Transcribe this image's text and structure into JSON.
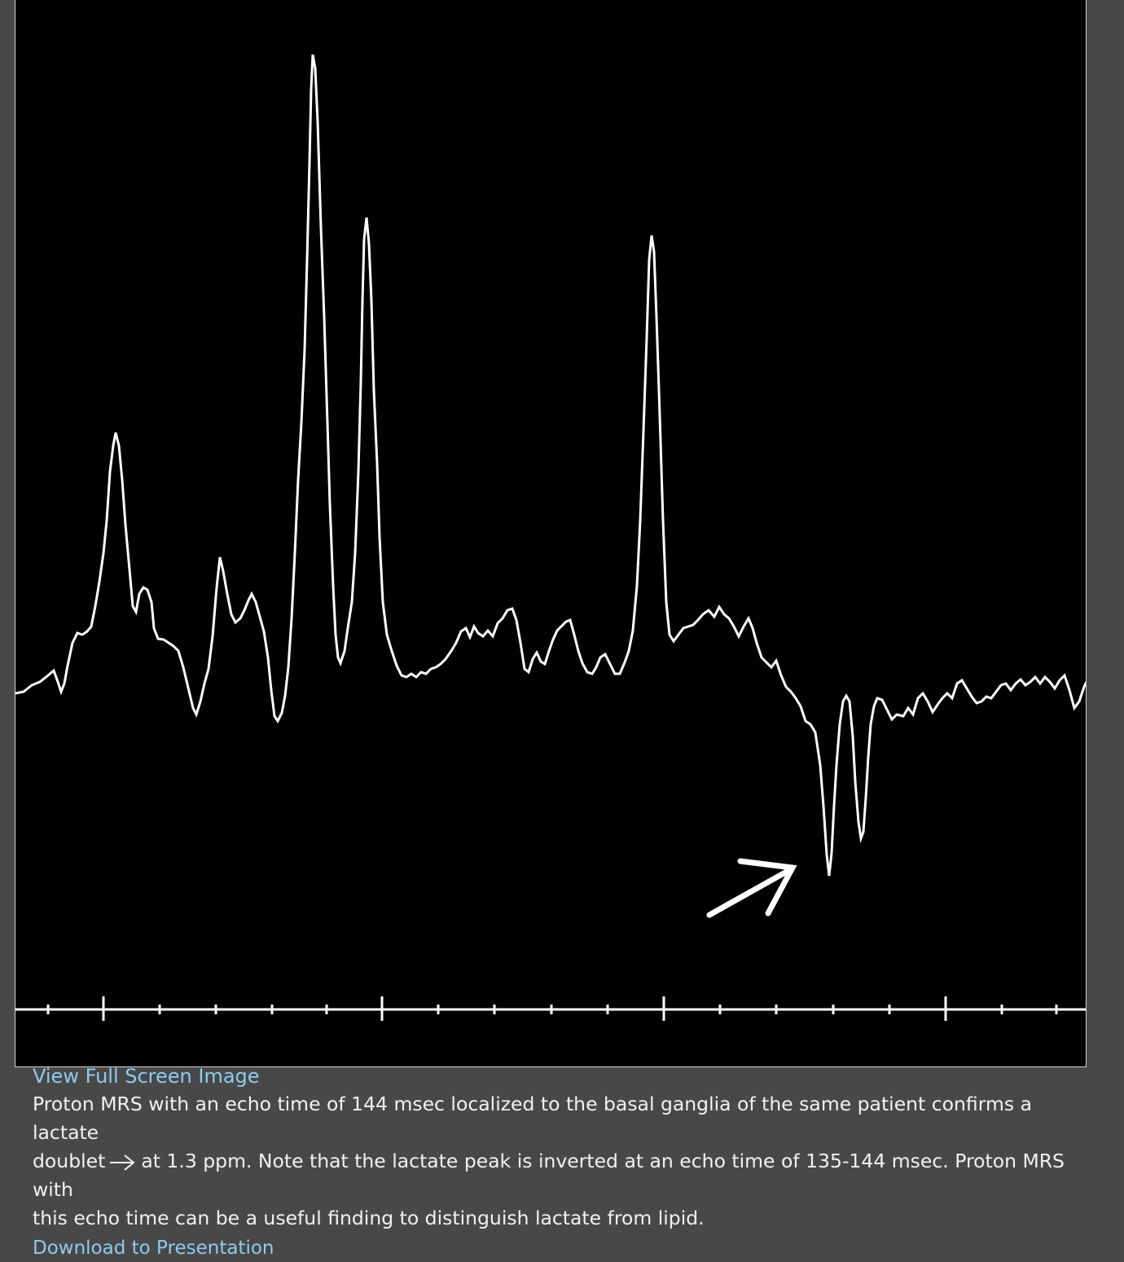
{
  "figure": {
    "image_name": "proton-mrs-spectrum",
    "colors": {
      "background": "#000000",
      "trace": "#ffffff",
      "frame": "#d8d8d8"
    },
    "annotation_icon": "arrow-icon",
    "axis": {
      "major_ticks": 4,
      "minor_ticks_between": 4
    }
  },
  "links": {
    "view_full_screen": "View Full Screen Image",
    "download": "Download to Presentation"
  },
  "caption": {
    "line_1": "Proton MRS with an echo time of 144 msec localized to the basal ganglia of the same patient confirms a lactate",
    "line_2_before_arrow": "doublet",
    "arrow_icon": "right-arrow-icon",
    "line_2_after_arrow": "at 1.3 ppm. Note that the lactate peak is inverted at an echo time of 135-144 msec. Proton MRS with",
    "line_3": "this echo time can be a useful finding to distinguish lactate from lipid."
  }
}
